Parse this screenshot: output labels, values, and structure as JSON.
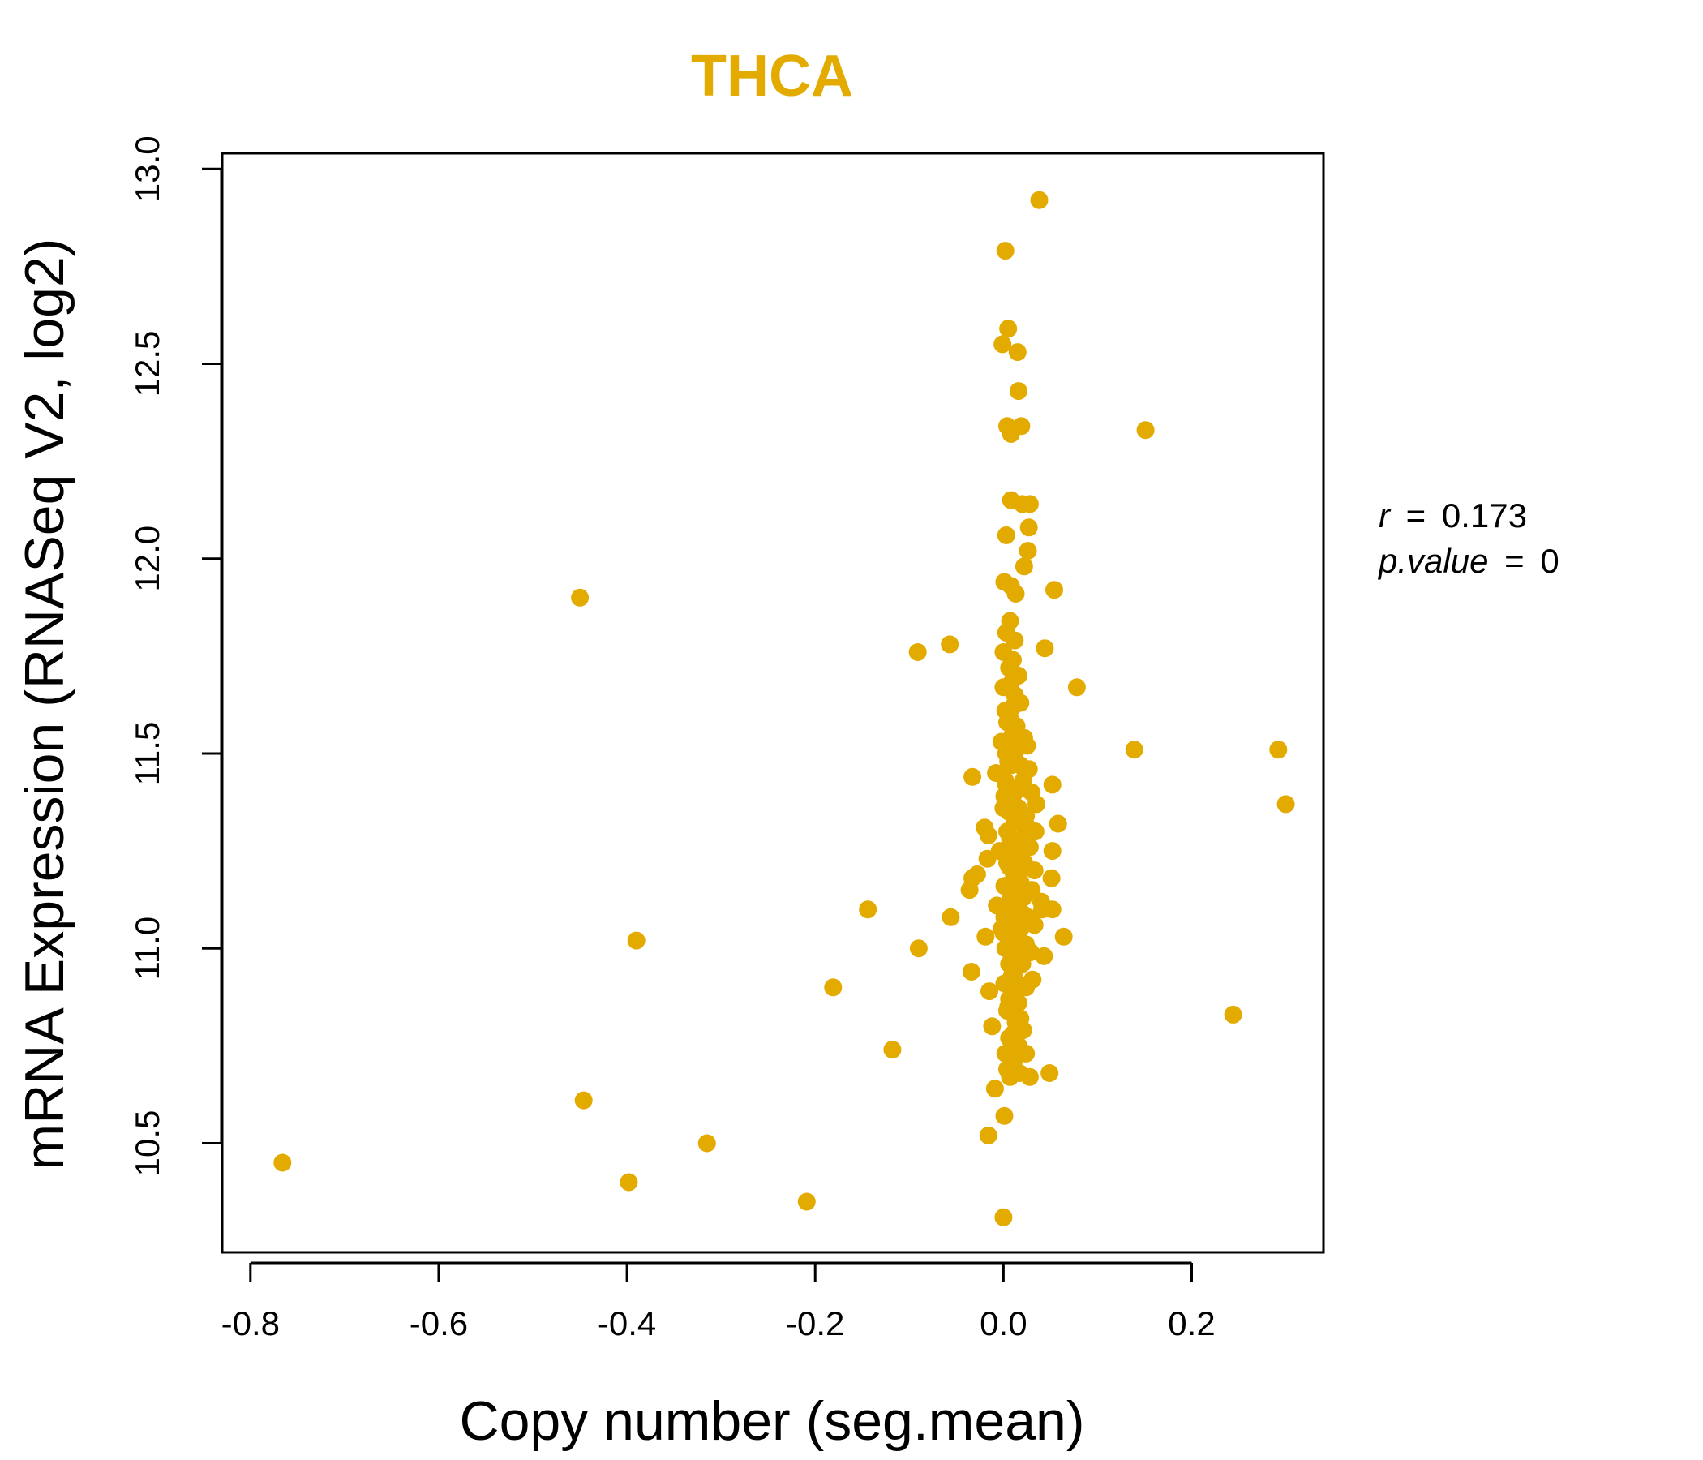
{
  "chart_data": {
    "type": "scatter",
    "title": "THCA",
    "xlabel": "Copy number (seg.mean)",
    "ylabel": "mRNA Expression (RNASeq V2, log2)",
    "xlim": [
      -0.83,
      0.34
    ],
    "ylim": [
      10.22,
      13.04
    ],
    "x_ticks": [
      -0.8,
      -0.6,
      -0.4,
      -0.2,
      0.0,
      0.2
    ],
    "x_tick_labels": [
      "-0.8",
      "-0.6",
      "-0.4",
      "-0.2",
      "0.0",
      "0.2"
    ],
    "y_ticks": [
      10.5,
      11.0,
      11.5,
      12.0,
      12.5,
      13.0
    ],
    "y_tick_labels": [
      "10.5",
      "11.0",
      "11.5",
      "12.0",
      "12.5",
      "13.0"
    ],
    "grid": false,
    "color": "#E3AA00",
    "stats": {
      "r_label": "r",
      "r_value": "0.173",
      "p_label": "p.value",
      "p_value": "0"
    },
    "points": [
      [
        0.038,
        12.92
      ],
      [
        0.002,
        12.79
      ],
      [
        0.005,
        12.59
      ],
      [
        -0.001,
        12.55
      ],
      [
        0.015,
        12.53
      ],
      [
        0.016,
        12.43
      ],
      [
        0.004,
        12.34
      ],
      [
        0.019,
        12.34
      ],
      [
        0.008,
        12.32
      ],
      [
        0.151,
        12.33
      ],
      [
        0.008,
        12.15
      ],
      [
        0.028,
        12.14
      ],
      [
        0.02,
        12.14
      ],
      [
        0.027,
        12.08
      ],
      [
        0.003,
        12.06
      ],
      [
        0.026,
        12.02
      ],
      [
        0.022,
        11.98
      ],
      [
        0.001,
        11.94
      ],
      [
        0.008,
        11.93
      ],
      [
        0.013,
        11.91
      ],
      [
        0.054,
        11.92
      ],
      [
        -0.45,
        11.9
      ],
      [
        0.007,
        11.84
      ],
      [
        0.003,
        11.81
      ],
      [
        0.012,
        11.79
      ],
      [
        -0.057,
        11.78
      ],
      [
        0.044,
        11.77
      ],
      [
        -0.091,
        11.76
      ],
      [
        0.0,
        11.76
      ],
      [
        0.01,
        11.74
      ],
      [
        0.006,
        11.72
      ],
      [
        0.016,
        11.7
      ],
      [
        0.008,
        11.68
      ],
      [
        0.0,
        11.67
      ],
      [
        0.078,
        11.67
      ],
      [
        0.012,
        11.65
      ],
      [
        0.018,
        11.63
      ],
      [
        0.002,
        11.61
      ],
      [
        0.007,
        11.59
      ],
      [
        0.014,
        11.57
      ],
      [
        0.01,
        11.55
      ],
      [
        0.022,
        11.54
      ],
      [
        -0.002,
        11.53
      ],
      [
        0.025,
        11.52
      ],
      [
        0.139,
        11.51
      ],
      [
        0.292,
        11.51
      ],
      [
        0.012,
        11.5
      ],
      [
        0.005,
        11.48
      ],
      [
        0.018,
        11.47
      ],
      [
        0.027,
        11.46
      ],
      [
        -0.008,
        11.45
      ],
      [
        -0.033,
        11.44
      ],
      [
        0.002,
        11.43
      ],
      [
        0.021,
        11.43
      ],
      [
        0.052,
        11.42
      ],
      [
        0.014,
        11.41
      ],
      [
        0.03,
        11.4
      ],
      [
        0.001,
        11.39
      ],
      [
        0.009,
        11.38
      ],
      [
        0.035,
        11.37
      ],
      [
        0.3,
        11.37
      ],
      [
        0.016,
        11.36
      ],
      [
        0.006,
        11.35
      ],
      [
        0.024,
        11.34
      ],
      [
        0.012,
        11.33
      ],
      [
        0.058,
        11.32
      ],
      [
        -0.02,
        11.31
      ],
      [
        0.004,
        11.3
      ],
      [
        0.034,
        11.3
      ],
      [
        -0.016,
        11.29
      ],
      [
        0.019,
        11.28
      ],
      [
        0.01,
        11.27
      ],
      [
        0.028,
        11.26
      ],
      [
        -0.004,
        11.25
      ],
      [
        0.052,
        11.25
      ],
      [
        0.014,
        11.24
      ],
      [
        -0.017,
        11.23
      ],
      [
        0.022,
        11.22
      ],
      [
        0.006,
        11.21
      ],
      [
        0.033,
        11.2
      ],
      [
        -0.028,
        11.19
      ],
      [
        0.011,
        11.19
      ],
      [
        -0.033,
        11.18
      ],
      [
        0.051,
        11.18
      ],
      [
        0.018,
        11.17
      ],
      [
        0.002,
        11.16
      ],
      [
        0.03,
        11.15
      ],
      [
        -0.036,
        11.15
      ],
      [
        0.009,
        11.14
      ],
      [
        0.021,
        11.13
      ],
      [
        0.04,
        11.12
      ],
      [
        -0.007,
        11.11
      ],
      [
        0.014,
        11.11
      ],
      [
        -0.144,
        11.1
      ],
      [
        0.041,
        11.1
      ],
      [
        0.052,
        11.1
      ],
      [
        0.005,
        11.09
      ],
      [
        0.026,
        11.08
      ],
      [
        -0.056,
        11.08
      ],
      [
        0.012,
        11.07
      ],
      [
        0.033,
        11.06
      ],
      [
        -0.002,
        11.05
      ],
      [
        0.018,
        11.05
      ],
      [
        0.064,
        11.03
      ],
      [
        -0.019,
        11.03
      ],
      [
        0.008,
        11.02
      ],
      [
        -0.39,
        11.02
      ],
      [
        0.024,
        11.01
      ],
      [
        -0.09,
        11.0
      ],
      [
        0.002,
        11.0
      ],
      [
        0.029,
        10.99
      ],
      [
        0.014,
        10.98
      ],
      [
        0.043,
        10.98
      ],
      [
        0.006,
        10.96
      ],
      [
        0.02,
        10.96
      ],
      [
        -0.034,
        10.94
      ],
      [
        0.011,
        10.93
      ],
      [
        0.031,
        10.92
      ],
      [
        0.001,
        10.91
      ],
      [
        0.024,
        10.9
      ],
      [
        -0.181,
        10.9
      ],
      [
        -0.015,
        10.89
      ],
      [
        0.009,
        10.88
      ],
      [
        0.016,
        10.86
      ],
      [
        0.004,
        10.84
      ],
      [
        0.244,
        10.83
      ],
      [
        0.013,
        10.81
      ],
      [
        -0.012,
        10.8
      ],
      [
        0.021,
        10.79
      ],
      [
        0.006,
        10.77
      ],
      [
        0.016,
        10.75
      ],
      [
        -0.118,
        10.74
      ],
      [
        0.002,
        10.73
      ],
      [
        0.024,
        10.73
      ],
      [
        0.011,
        10.71
      ],
      [
        0.004,
        10.69
      ],
      [
        0.017,
        10.68
      ],
      [
        0.049,
        10.68
      ],
      [
        0.028,
        10.67
      ],
      [
        0.007,
        10.67
      ],
      [
        -0.009,
        10.64
      ],
      [
        -0.446,
        10.61
      ],
      [
        0.001,
        10.57
      ],
      [
        -0.016,
        10.52
      ],
      [
        -0.315,
        10.5
      ],
      [
        -0.766,
        10.45
      ],
      [
        -0.398,
        10.4
      ],
      [
        -0.209,
        10.35
      ],
      [
        0.0,
        10.31
      ],
      [
        0.01,
        11.62
      ],
      [
        0.004,
        11.58
      ],
      [
        0.016,
        11.52
      ],
      [
        0.008,
        11.47
      ],
      [
        0.02,
        11.41
      ],
      [
        0.0,
        11.36
      ],
      [
        0.026,
        11.31
      ],
      [
        0.012,
        11.27
      ],
      [
        0.004,
        11.22
      ],
      [
        0.016,
        11.18
      ],
      [
        0.008,
        11.13
      ],
      [
        0.02,
        11.09
      ],
      [
        0.0,
        11.04
      ],
      [
        0.024,
        11.0
      ],
      [
        0.012,
        10.95
      ],
      [
        0.006,
        10.87
      ],
      [
        0.018,
        10.82
      ],
      [
        0.01,
        10.78
      ],
      [
        0.003,
        11.42
      ],
      [
        0.014,
        11.35
      ],
      [
        0.007,
        11.28
      ],
      [
        0.019,
        11.21
      ],
      [
        0.001,
        11.16
      ],
      [
        0.013,
        11.12
      ],
      [
        0.006,
        11.07
      ],
      [
        0.017,
        11.02
      ],
      [
        0.009,
        10.97
      ],
      [
        0.015,
        10.91
      ],
      [
        0.005,
        10.85
      ],
      [
        0.011,
        11.56
      ],
      [
        0.003,
        11.5
      ],
      [
        0.022,
        11.46
      ],
      [
        0.01,
        11.39
      ],
      [
        0.018,
        11.32
      ],
      [
        0.007,
        11.24
      ],
      [
        0.023,
        11.15
      ],
      [
        0.001,
        11.08
      ],
      [
        0.015,
        11.01
      ],
      [
        0.009,
        10.93
      ]
    ]
  }
}
